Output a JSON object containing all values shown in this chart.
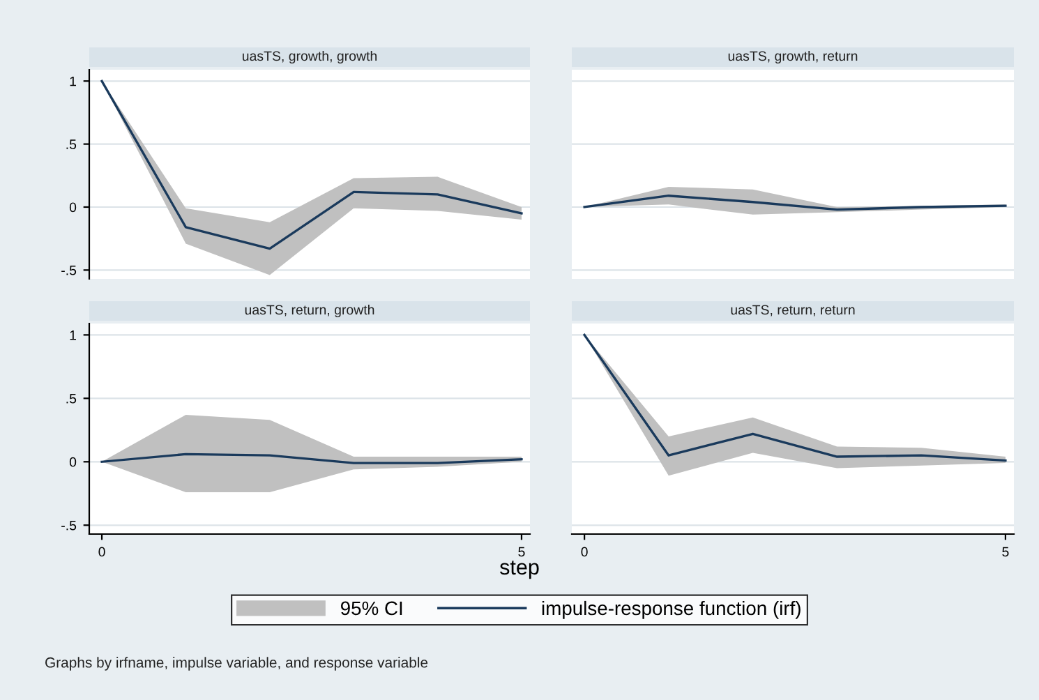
{
  "chart_data": [
    {
      "type": "line",
      "title": "uasTS, growth, growth",
      "x": [
        0,
        1,
        2,
        3,
        4,
        5
      ],
      "xlim": [
        -0.15,
        5.1
      ],
      "ylim": [
        -0.57,
        1.09
      ],
      "yticks": [
        {
          "value": -0.5,
          "label": "-.5"
        },
        0,
        {
          "value": 0.5,
          "label": ".5"
        },
        1
      ],
      "grid": "y",
      "tick_labels": "y",
      "series": [
        {
          "color": "#1a3a5c",
          "values": [
            1,
            -0.16,
            -0.33,
            0.12,
            0.1,
            -0.05
          ],
          "lower": [
            1,
            -0.29,
            -0.54,
            -0.01,
            -0.03,
            -0.1
          ],
          "upper": [
            1,
            -0.01,
            -0.12,
            0.23,
            0.24,
            0.0
          ]
        }
      ]
    },
    {
      "type": "line",
      "title": "uasTS, growth, return",
      "x": [
        0,
        1,
        2,
        3,
        4,
        5
      ],
      "xlim": [
        -0.15,
        5.1
      ],
      "ylim": [
        -0.57,
        1.09
      ],
      "yticks": [
        {
          "value": -0.5,
          "label": null
        },
        {
          "value": 0,
          "label": null
        },
        {
          "value": 0.5,
          "label": null
        },
        {
          "value": 1,
          "label": null
        }
      ],
      "grid": "y",
      "tick_labels": false,
      "series": [
        {
          "color": "#1a3a5c",
          "values": [
            0,
            0.09,
            0.04,
            -0.02,
            0.0,
            0.01
          ],
          "lower": [
            0,
            0.02,
            -0.06,
            -0.04,
            -0.02,
            0.0
          ],
          "upper": [
            0,
            0.16,
            0.14,
            0.0,
            0.01,
            0.02
          ]
        }
      ]
    },
    {
      "type": "line",
      "title": "uasTS, return, growth",
      "x": [
        0,
        1,
        2,
        3,
        4,
        5
      ],
      "xlim": [
        -0.15,
        5.1
      ],
      "xticks": [
        0,
        5
      ],
      "ylim": [
        -0.57,
        1.09
      ],
      "yticks": [
        {
          "value": -0.5,
          "label": "-.5"
        },
        0,
        {
          "value": 0.5,
          "label": ".5"
        },
        1
      ],
      "grid": "y",
      "series": [
        {
          "color": "#1a3a5c",
          "values": [
            0,
            0.06,
            0.05,
            -0.01,
            -0.01,
            0.02
          ],
          "lower": [
            0,
            -0.24,
            -0.24,
            -0.06,
            -0.04,
            0.0
          ],
          "upper": [
            0,
            0.37,
            0.33,
            0.04,
            0.04,
            0.04
          ]
        }
      ]
    },
    {
      "type": "line",
      "title": "uasTS, return, return",
      "xlabel": "step",
      "x": [
        0,
        1,
        2,
        3,
        4,
        5
      ],
      "xlim": [
        -0.15,
        5.1
      ],
      "xticks": [
        0,
        5
      ],
      "ylim": [
        -0.57,
        1.09
      ],
      "yticks": [
        {
          "value": -0.5,
          "label": null
        },
        {
          "value": 0,
          "label": null
        },
        {
          "value": 0.5,
          "label": null
        },
        {
          "value": 1,
          "label": null
        }
      ],
      "grid": "y",
      "tick_labels": "x",
      "legend": "bottom",
      "annotations": [
        {
          "text": "95% CI"
        },
        "Graphs by irfname, impulse variable, and response variable"
      ],
      "series": [
        {
          "name": "impulse-response function (irf)",
          "color": "#1a3a5c",
          "values": [
            1,
            0.05,
            0.22,
            0.04,
            0.05,
            0.01
          ],
          "lower": [
            1,
            -0.11,
            0.07,
            -0.05,
            -0.03,
            -0.01
          ],
          "upper": [
            1,
            0.2,
            0.35,
            0.12,
            0.11,
            0.04
          ]
        }
      ]
    }
  ]
}
